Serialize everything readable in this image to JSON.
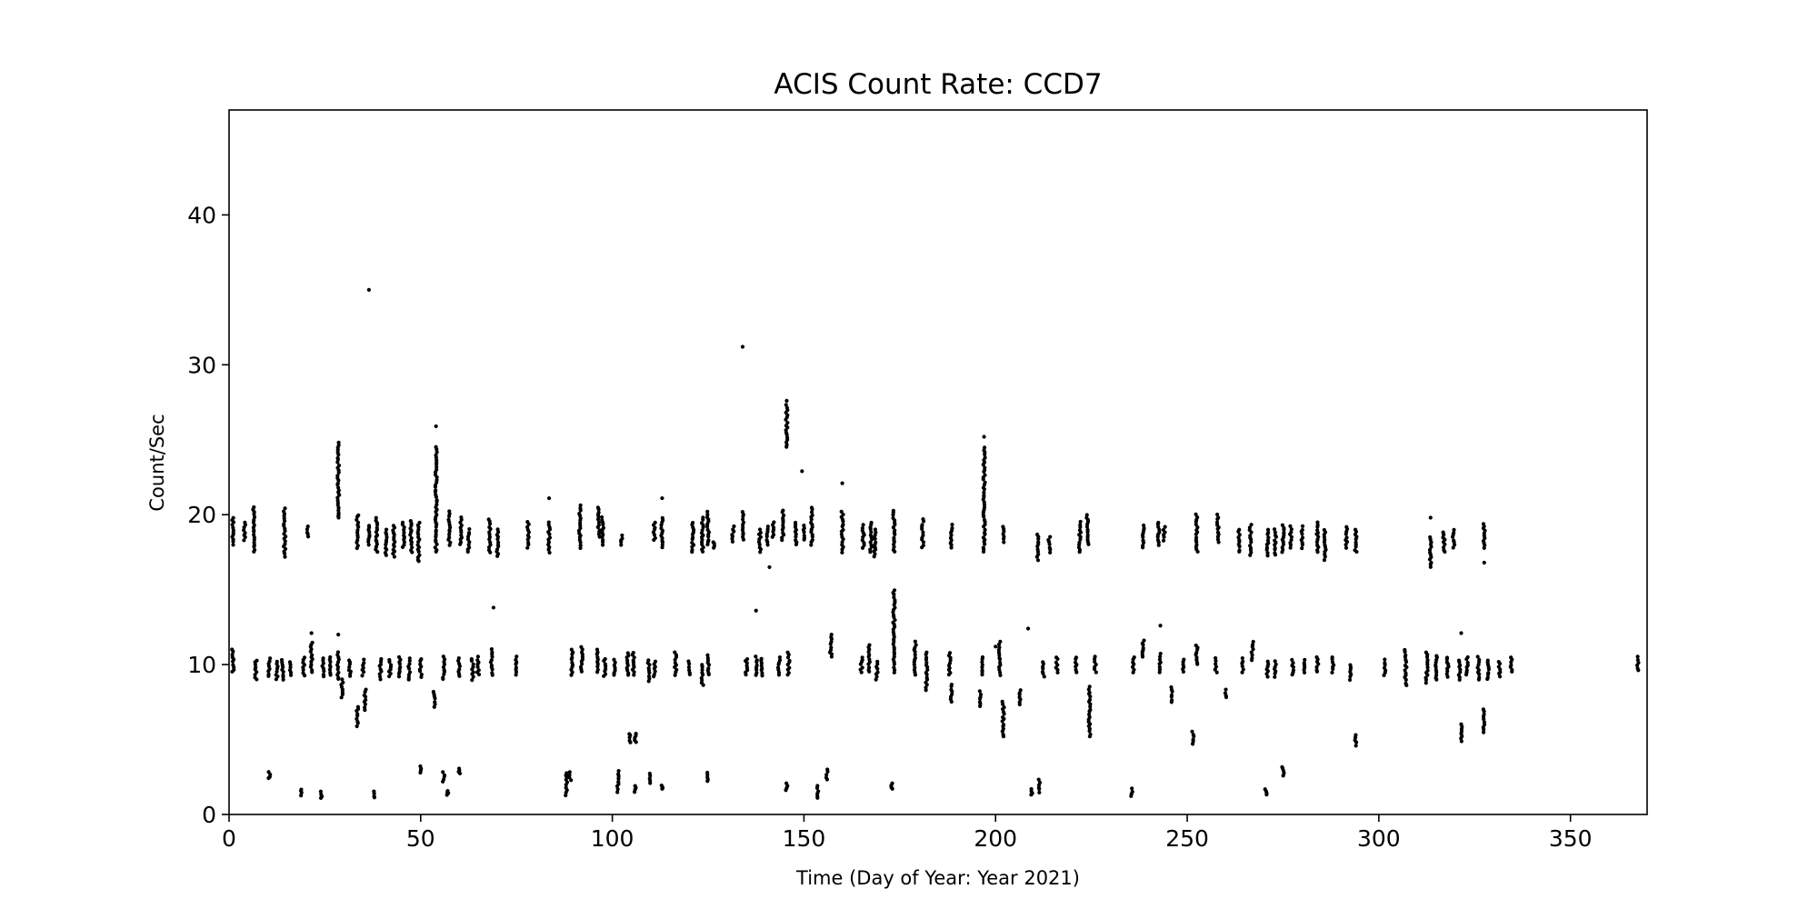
{
  "chart_data": {
    "type": "scatter",
    "title": "ACIS Count Rate: CCD7",
    "xlabel": "Time (Day of Year: Year 2021)",
    "ylabel": "Count/Sec",
    "xlim": [
      0,
      370
    ],
    "ylim": [
      0,
      47
    ],
    "xticks": [
      0,
      50,
      100,
      150,
      200,
      250,
      300,
      350
    ],
    "yticks": [
      0,
      10,
      20,
      30,
      40
    ],
    "grid": false,
    "legend": "none",
    "marker_color": "#000000",
    "clusters": [
      {
        "x": 1,
        "y_min": 18,
        "y_max": 19.8
      },
      {
        "x": 4,
        "y_min": 18.3,
        "y_max": 19.5
      },
      {
        "x": 6.5,
        "y_min": 17.5,
        "y_max": 20.5
      },
      {
        "x": 14.5,
        "y_min": 17.2,
        "y_max": 20.4
      },
      {
        "x": 20.5,
        "y_min": 18.5,
        "y_max": 19.2
      },
      {
        "x": 28.5,
        "y_min": 19.8,
        "y_max": 24.8
      },
      {
        "x": 33.5,
        "y_min": 17.8,
        "y_max": 20
      },
      {
        "x": 36.5,
        "y_min": 18,
        "y_max": 19.3
      },
      {
        "x": 38.5,
        "y_min": 17.5,
        "y_max": 19.8
      },
      {
        "x": 41,
        "y_min": 17.3,
        "y_max": 19
      },
      {
        "x": 43,
        "y_min": 17.2,
        "y_max": 19.3
      },
      {
        "x": 45.5,
        "y_min": 17.8,
        "y_max": 19.5
      },
      {
        "x": 47.5,
        "y_min": 17.5,
        "y_max": 19.6
      },
      {
        "x": 49.5,
        "y_min": 17,
        "y_max": 19.5
      },
      {
        "x": 54,
        "y_min": 17.5,
        "y_max": 24.5
      },
      {
        "x": 57.5,
        "y_min": 18,
        "y_max": 20.2
      },
      {
        "x": 60.5,
        "y_min": 18,
        "y_max": 19.8
      },
      {
        "x": 62.5,
        "y_min": 17.5,
        "y_max": 19
      },
      {
        "x": 68,
        "y_min": 17.5,
        "y_max": 19.7
      },
      {
        "x": 70,
        "y_min": 17.2,
        "y_max": 19
      },
      {
        "x": 78,
        "y_min": 17.8,
        "y_max": 19.5
      },
      {
        "x": 83.5,
        "y_min": 17.5,
        "y_max": 19.5
      },
      {
        "x": 91.5,
        "y_min": 17.8,
        "y_max": 20.6
      },
      {
        "x": 96.5,
        "y_min": 18.5,
        "y_max": 20.5
      },
      {
        "x": 97.5,
        "y_min": 18,
        "y_max": 19.8
      },
      {
        "x": 102.5,
        "y_min": 18,
        "y_max": 18.6
      },
      {
        "x": 111,
        "y_min": 18.3,
        "y_max": 19.5
      },
      {
        "x": 113,
        "y_min": 17.8,
        "y_max": 19.8
      },
      {
        "x": 121,
        "y_min": 17.5,
        "y_max": 19.5
      },
      {
        "x": 123.5,
        "y_min": 17.5,
        "y_max": 19.8
      },
      {
        "x": 125,
        "y_min": 18,
        "y_max": 20.2
      },
      {
        "x": 126.5,
        "y_min": 17.8,
        "y_max": 18.2
      },
      {
        "x": 131.5,
        "y_min": 18.2,
        "y_max": 19.2
      },
      {
        "x": 134,
        "y_min": 18.3,
        "y_max": 20.2
      },
      {
        "x": 138.5,
        "y_min": 17.5,
        "y_max": 19
      },
      {
        "x": 140.5,
        "y_min": 18,
        "y_max": 19.2
      },
      {
        "x": 142,
        "y_min": 18.5,
        "y_max": 19.5
      },
      {
        "x": 144.5,
        "y_min": 18.3,
        "y_max": 20.3
      },
      {
        "x": 145.5,
        "y_min": 24.5,
        "y_max": 27.3
      },
      {
        "x": 148,
        "y_min": 18,
        "y_max": 19.5
      },
      {
        "x": 150,
        "y_min": 18.3,
        "y_max": 19.3
      },
      {
        "x": 152,
        "y_min": 18,
        "y_max": 20.5
      },
      {
        "x": 160,
        "y_min": 17.5,
        "y_max": 20.2
      },
      {
        "x": 165.5,
        "y_min": 17.8,
        "y_max": 19.3
      },
      {
        "x": 167.5,
        "y_min": 17.5,
        "y_max": 19.5
      },
      {
        "x": 168.5,
        "y_min": 17.2,
        "y_max": 19
      },
      {
        "x": 173.5,
        "y_min": 17.5,
        "y_max": 20.3
      },
      {
        "x": 181,
        "y_min": 17.8,
        "y_max": 19.7
      },
      {
        "x": 188.5,
        "y_min": 17.8,
        "y_max": 19.3
      },
      {
        "x": 197,
        "y_min": 17.5,
        "y_max": 24.5
      },
      {
        "x": 202,
        "y_min": 18.2,
        "y_max": 19.2
      },
      {
        "x": 211,
        "y_min": 17,
        "y_max": 18.7
      },
      {
        "x": 214,
        "y_min": 17.5,
        "y_max": 18.5
      },
      {
        "x": 222,
        "y_min": 17.5,
        "y_max": 19.5
      },
      {
        "x": 224,
        "y_min": 18,
        "y_max": 20
      },
      {
        "x": 238.5,
        "y_min": 17.8,
        "y_max": 19.3
      },
      {
        "x": 242.5,
        "y_min": 18,
        "y_max": 19.5
      },
      {
        "x": 244,
        "y_min": 18.3,
        "y_max": 19.2
      },
      {
        "x": 252.5,
        "y_min": 17.5,
        "y_max": 20
      },
      {
        "x": 258,
        "y_min": 18.2,
        "y_max": 20
      },
      {
        "x": 263.5,
        "y_min": 17.5,
        "y_max": 19
      },
      {
        "x": 266.5,
        "y_min": 17.3,
        "y_max": 19.3
      },
      {
        "x": 271,
        "y_min": 17.3,
        "y_max": 19
      },
      {
        "x": 273,
        "y_min": 17.3,
        "y_max": 19
      },
      {
        "x": 275,
        "y_min": 17.5,
        "y_max": 19.3
      },
      {
        "x": 277,
        "y_min": 17.8,
        "y_max": 19.2
      },
      {
        "x": 280,
        "y_min": 17.8,
        "y_max": 19.2
      },
      {
        "x": 284,
        "y_min": 17.5,
        "y_max": 19.5
      },
      {
        "x": 286,
        "y_min": 17,
        "y_max": 19
      },
      {
        "x": 291.5,
        "y_min": 17.8,
        "y_max": 19.2
      },
      {
        "x": 294,
        "y_min": 17.5,
        "y_max": 19
      },
      {
        "x": 313.5,
        "y_min": 16.5,
        "y_max": 18.5
      },
      {
        "x": 317,
        "y_min": 17.5,
        "y_max": 18.8
      },
      {
        "x": 319.5,
        "y_min": 17.8,
        "y_max": 19
      },
      {
        "x": 327.5,
        "y_min": 17.8,
        "y_max": 19.4
      },
      {
        "x": 1,
        "y_min": 9.5,
        "y_max": 11
      },
      {
        "x": 7,
        "y_min": 9,
        "y_max": 10.3
      },
      {
        "x": 10.5,
        "y_min": 9.2,
        "y_max": 10.4
      },
      {
        "x": 12.5,
        "y_min": 9,
        "y_max": 10.2
      },
      {
        "x": 14,
        "y_min": 9,
        "y_max": 10.3
      },
      {
        "x": 16,
        "y_min": 9.3,
        "y_max": 10.2
      },
      {
        "x": 19.5,
        "y_min": 9.3,
        "y_max": 10.5
      },
      {
        "x": 21.5,
        "y_min": 9.5,
        "y_max": 11.5
      },
      {
        "x": 24.5,
        "y_min": 9.2,
        "y_max": 10.4
      },
      {
        "x": 26.5,
        "y_min": 9.3,
        "y_max": 10.5
      },
      {
        "x": 28.5,
        "y_min": 9,
        "y_max": 10.8
      },
      {
        "x": 29.5,
        "y_min": 7.8,
        "y_max": 9
      },
      {
        "x": 31.5,
        "y_min": 9.2,
        "y_max": 10.3
      },
      {
        "x": 33.5,
        "y_min": 5.9,
        "y_max": 7.2
      },
      {
        "x": 35,
        "y_min": 9.3,
        "y_max": 10.3
      },
      {
        "x": 35.5,
        "y_min": 7,
        "y_max": 8.3
      },
      {
        "x": 39.5,
        "y_min": 9,
        "y_max": 10.4
      },
      {
        "x": 42,
        "y_min": 9.2,
        "y_max": 10.3
      },
      {
        "x": 44.5,
        "y_min": 9.2,
        "y_max": 10.5
      },
      {
        "x": 47,
        "y_min": 9,
        "y_max": 10.4
      },
      {
        "x": 50,
        "y_min": 9.2,
        "y_max": 10.4
      },
      {
        "x": 53.5,
        "y_min": 7.2,
        "y_max": 8.2
      },
      {
        "x": 56,
        "y_min": 9,
        "y_max": 10.5
      },
      {
        "x": 60,
        "y_min": 9.2,
        "y_max": 10.4
      },
      {
        "x": 63.5,
        "y_min": 9,
        "y_max": 10.4
      },
      {
        "x": 65,
        "y_min": 9.3,
        "y_max": 10.5
      },
      {
        "x": 68.5,
        "y_min": 9.3,
        "y_max": 11
      },
      {
        "x": 75,
        "y_min": 9.3,
        "y_max": 10.5
      },
      {
        "x": 89.5,
        "y_min": 9.3,
        "y_max": 11
      },
      {
        "x": 92,
        "y_min": 9.5,
        "y_max": 11.2
      },
      {
        "x": 96,
        "y_min": 9.5,
        "y_max": 11
      },
      {
        "x": 98,
        "y_min": 9.2,
        "y_max": 10.4
      },
      {
        "x": 100.5,
        "y_min": 9.3,
        "y_max": 10.3
      },
      {
        "x": 104,
        "y_min": 9.3,
        "y_max": 10.8
      },
      {
        "x": 105.5,
        "y_min": 9.3,
        "y_max": 10.8
      },
      {
        "x": 109.5,
        "y_min": 8.9,
        "y_max": 10.3
      },
      {
        "x": 111,
        "y_min": 9.2,
        "y_max": 10.2
      },
      {
        "x": 116.5,
        "y_min": 9.3,
        "y_max": 10.8
      },
      {
        "x": 120,
        "y_min": 9.3,
        "y_max": 10.2
      },
      {
        "x": 123.5,
        "y_min": 8.6,
        "y_max": 10
      },
      {
        "x": 125,
        "y_min": 9.3,
        "y_max": 10.6
      },
      {
        "x": 135,
        "y_min": 9.3,
        "y_max": 10.4
      },
      {
        "x": 137.5,
        "y_min": 9.3,
        "y_max": 10.5
      },
      {
        "x": 139,
        "y_min": 9.3,
        "y_max": 10.4
      },
      {
        "x": 143.5,
        "y_min": 9.3,
        "y_max": 10.5
      },
      {
        "x": 146,
        "y_min": 9.3,
        "y_max": 10.8
      },
      {
        "x": 157,
        "y_min": 10.5,
        "y_max": 12
      },
      {
        "x": 165,
        "y_min": 9.5,
        "y_max": 10.5
      },
      {
        "x": 167,
        "y_min": 9.5,
        "y_max": 11.3
      },
      {
        "x": 169,
        "y_min": 9,
        "y_max": 10.2
      },
      {
        "x": 173.5,
        "y_min": 9.5,
        "y_max": 15
      },
      {
        "x": 179,
        "y_min": 9.3,
        "y_max": 11.5
      },
      {
        "x": 182,
        "y_min": 8.3,
        "y_max": 10.8
      },
      {
        "x": 188.5,
        "y_min": 7.5,
        "y_max": 8.7
      },
      {
        "x": 188,
        "y_min": 9.3,
        "y_max": 10.8
      },
      {
        "x": 196,
        "y_min": 7.2,
        "y_max": 8.2
      },
      {
        "x": 196.5,
        "y_min": 9.3,
        "y_max": 10.5
      },
      {
        "x": 201,
        "y_min": 9.3,
        "y_max": 11.5
      },
      {
        "x": 202,
        "y_min": 5.2,
        "y_max": 7.5
      },
      {
        "x": 206.5,
        "y_min": 7.3,
        "y_max": 8.3
      },
      {
        "x": 212.5,
        "y_min": 9.2,
        "y_max": 10.2
      },
      {
        "x": 216,
        "y_min": 9.5,
        "y_max": 10.5
      },
      {
        "x": 221,
        "y_min": 9.5,
        "y_max": 10.5
      },
      {
        "x": 224.5,
        "y_min": 5.2,
        "y_max": 8.5
      },
      {
        "x": 226,
        "y_min": 9.5,
        "y_max": 10.5
      },
      {
        "x": 236,
        "y_min": 9.5,
        "y_max": 10.5
      },
      {
        "x": 238.5,
        "y_min": 10.5,
        "y_max": 11.6
      },
      {
        "x": 243,
        "y_min": 9.5,
        "y_max": 10.7
      },
      {
        "x": 246,
        "y_min": 7.5,
        "y_max": 8.5
      },
      {
        "x": 249,
        "y_min": 9.5,
        "y_max": 10.3
      },
      {
        "x": 252.5,
        "y_min": 10,
        "y_max": 11.3
      },
      {
        "x": 251.5,
        "y_min": 4.7,
        "y_max": 5.5
      },
      {
        "x": 257.5,
        "y_min": 9.5,
        "y_max": 10.4
      },
      {
        "x": 260,
        "y_min": 7.8,
        "y_max": 8.3
      },
      {
        "x": 264.5,
        "y_min": 9.5,
        "y_max": 10.4
      },
      {
        "x": 267,
        "y_min": 10.3,
        "y_max": 11.5
      },
      {
        "x": 271,
        "y_min": 9.2,
        "y_max": 10.2
      },
      {
        "x": 273,
        "y_min": 9.2,
        "y_max": 10.2
      },
      {
        "x": 277.5,
        "y_min": 9.3,
        "y_max": 10.3
      },
      {
        "x": 280.5,
        "y_min": 9.5,
        "y_max": 10.3
      },
      {
        "x": 284,
        "y_min": 9.5,
        "y_max": 10.5
      },
      {
        "x": 288,
        "y_min": 9.5,
        "y_max": 10.5
      },
      {
        "x": 292.5,
        "y_min": 9,
        "y_max": 10
      },
      {
        "x": 301.5,
        "y_min": 9.3,
        "y_max": 10.3
      },
      {
        "x": 307,
        "y_min": 8.6,
        "y_max": 11
      },
      {
        "x": 312.5,
        "y_min": 8.8,
        "y_max": 10.8
      },
      {
        "x": 315,
        "y_min": 9,
        "y_max": 10.6
      },
      {
        "x": 318,
        "y_min": 9.2,
        "y_max": 10.5
      },
      {
        "x": 321,
        "y_min": 9,
        "y_max": 10.3
      },
      {
        "x": 323,
        "y_min": 9.3,
        "y_max": 10.5
      },
      {
        "x": 326,
        "y_min": 9,
        "y_max": 10.5
      },
      {
        "x": 328.5,
        "y_min": 9,
        "y_max": 10.3
      },
      {
        "x": 331.5,
        "y_min": 9.2,
        "y_max": 10.2
      },
      {
        "x": 334.5,
        "y_min": 9.5,
        "y_max": 10.5
      },
      {
        "x": 367.5,
        "y_min": 9.6,
        "y_max": 10.5
      },
      {
        "x": 321.5,
        "y_min": 4.9,
        "y_max": 6
      },
      {
        "x": 327.5,
        "y_min": 5.5,
        "y_max": 7
      },
      {
        "x": 104.5,
        "y_min": 4.8,
        "y_max": 5.4
      },
      {
        "x": 106,
        "y_min": 4.8,
        "y_max": 5.4
      },
      {
        "x": 294,
        "y_min": 4.6,
        "y_max": 5.3
      },
      {
        "x": 10.5,
        "y_min": 2.4,
        "y_max": 2.8
      },
      {
        "x": 19,
        "y_min": 1.3,
        "y_max": 1.7
      },
      {
        "x": 24,
        "y_min": 1.1,
        "y_max": 1.5
      },
      {
        "x": 38,
        "y_min": 1.1,
        "y_max": 1.5
      },
      {
        "x": 50,
        "y_min": 2.8,
        "y_max": 3.2
      },
      {
        "x": 56,
        "y_min": 2.2,
        "y_max": 2.8
      },
      {
        "x": 57,
        "y_min": 1.3,
        "y_max": 1.6
      },
      {
        "x": 60,
        "y_min": 2.7,
        "y_max": 3.1
      },
      {
        "x": 88,
        "y_min": 1.3,
        "y_max": 2.8
      },
      {
        "x": 89,
        "y_min": 2.3,
        "y_max": 2.8
      },
      {
        "x": 101.5,
        "y_min": 1.5,
        "y_max": 2.9
      },
      {
        "x": 106,
        "y_min": 1.5,
        "y_max": 1.9
      },
      {
        "x": 110,
        "y_min": 2.1,
        "y_max": 2.7
      },
      {
        "x": 113,
        "y_min": 1.7,
        "y_max": 1.9
      },
      {
        "x": 125,
        "y_min": 2.2,
        "y_max": 2.8
      },
      {
        "x": 145.5,
        "y_min": 1.6,
        "y_max": 2.1
      },
      {
        "x": 153.5,
        "y_min": 1.1,
        "y_max": 1.9
      },
      {
        "x": 156,
        "y_min": 2.3,
        "y_max": 3
      },
      {
        "x": 173,
        "y_min": 1.7,
        "y_max": 2.1
      },
      {
        "x": 209.5,
        "y_min": 1.3,
        "y_max": 1.7
      },
      {
        "x": 211.5,
        "y_min": 1.5,
        "y_max": 2.3
      },
      {
        "x": 235.5,
        "y_min": 1.2,
        "y_max": 1.7
      },
      {
        "x": 270.5,
        "y_min": 1.3,
        "y_max": 1.7
      },
      {
        "x": 275,
        "y_min": 2.6,
        "y_max": 3.2
      }
    ],
    "outliers": [
      {
        "x": 36.5,
        "y": 35
      },
      {
        "x": 134,
        "y": 31.2
      },
      {
        "x": 54,
        "y": 25.9
      },
      {
        "x": 145.5,
        "y": 27.6
      },
      {
        "x": 197,
        "y": 25.2
      },
      {
        "x": 149.5,
        "y": 22.9
      },
      {
        "x": 160,
        "y": 22.1
      },
      {
        "x": 83.5,
        "y": 21.1
      },
      {
        "x": 113,
        "y": 21.1
      },
      {
        "x": 28.5,
        "y": 19.9
      },
      {
        "x": 141,
        "y": 16.5
      },
      {
        "x": 313.5,
        "y": 19.8
      },
      {
        "x": 137.5,
        "y": 13.6
      },
      {
        "x": 69,
        "y": 13.8
      },
      {
        "x": 208.5,
        "y": 12.4
      },
      {
        "x": 21.5,
        "y": 12.1
      },
      {
        "x": 28.5,
        "y": 12
      },
      {
        "x": 243,
        "y": 12.6
      },
      {
        "x": 321.5,
        "y": 12.1
      },
      {
        "x": 200,
        "y": 11.2
      },
      {
        "x": 49.5,
        "y": 16.9
      },
      {
        "x": 327.5,
        "y": 16.8
      }
    ]
  }
}
